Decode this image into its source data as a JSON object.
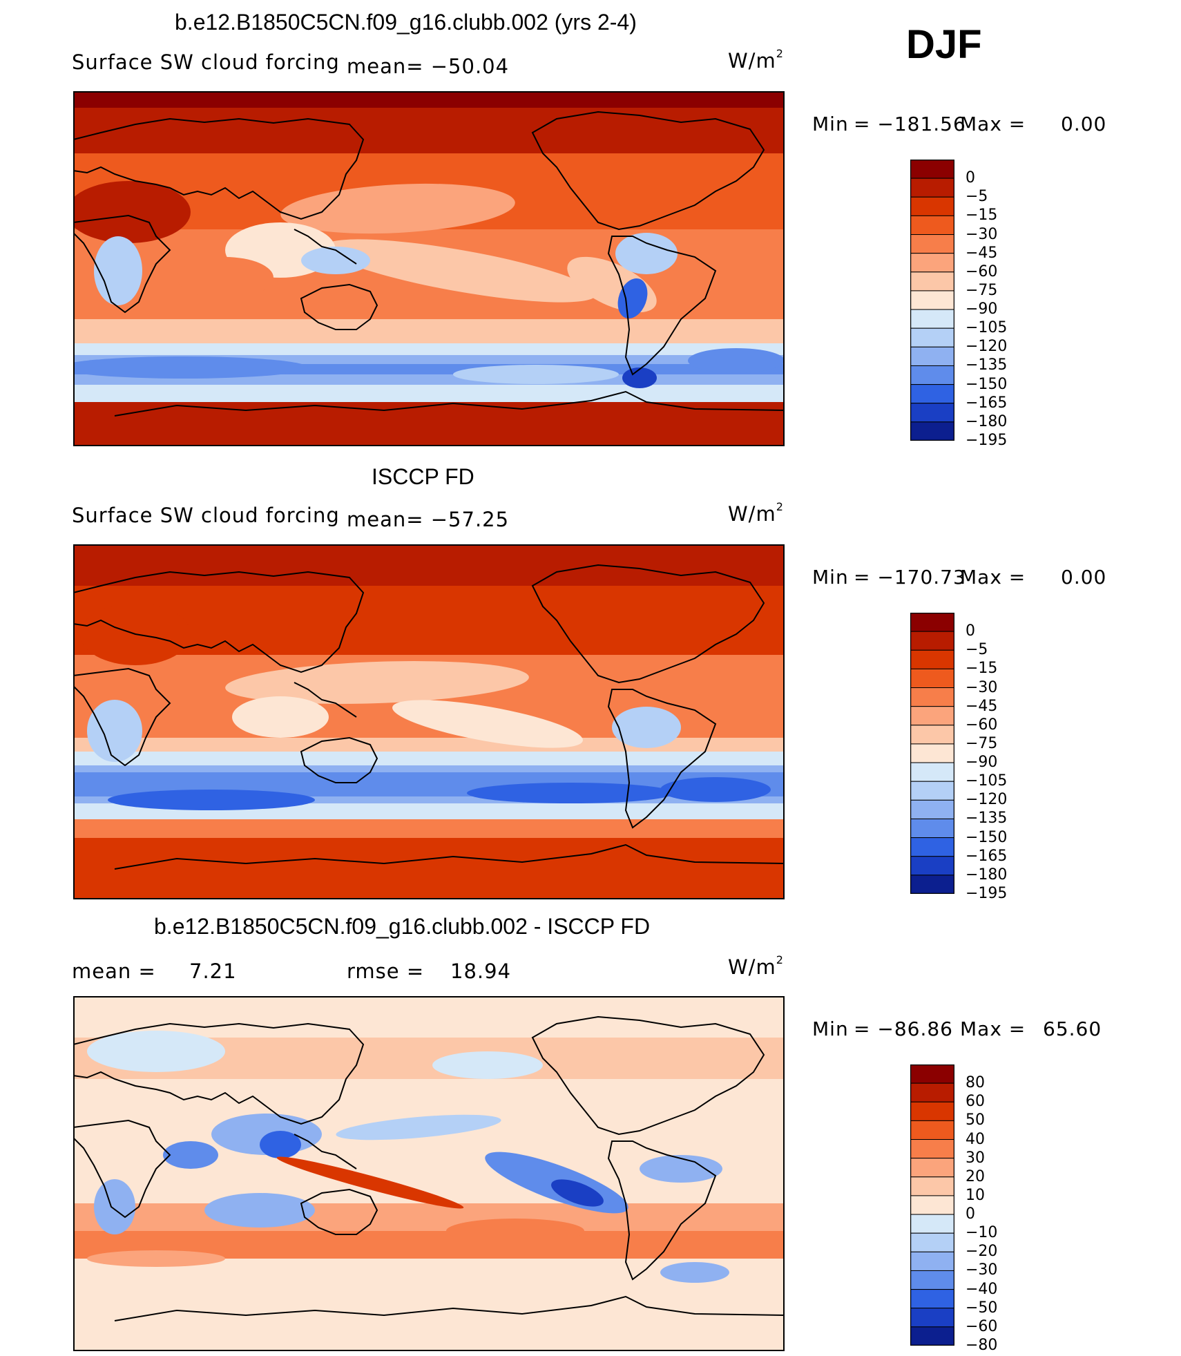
{
  "season": "DJF",
  "unit_base": "W/m",
  "unit_exp": "2",
  "panels": [
    {
      "title": "b.e12.B1850C5CN.f09_g16.clubb.002 (yrs 2-4)",
      "left_label": "Surface SW cloud forcing",
      "mean_text": "mean= −50.04",
      "minmax": "Min = −181.56 Max = 0.00",
      "min_label": "Min",
      "min_value": "= −181.56",
      "max_label": "Max =",
      "max_value": "0.00",
      "levels": [
        "0",
        "−5",
        "−15",
        "−30",
        "−45",
        "−60",
        "−75",
        "−90",
        "−105",
        "−120",
        "−135",
        "−150",
        "−165",
        "−180",
        "−195"
      ]
    },
    {
      "title": "ISCCP FD",
      "left_label": "Surface SW cloud forcing",
      "mean_text": "mean= −57.25",
      "min_label": "Min",
      "min_value": "= −170.73",
      "max_label": "Max =",
      "max_value": "0.00",
      "levels": [
        "0",
        "−5",
        "−15",
        "−30",
        "−45",
        "−60",
        "−75",
        "−90",
        "−105",
        "−120",
        "−135",
        "−150",
        "−165",
        "−180",
        "−195"
      ]
    },
    {
      "title": "b.e12.B1850C5CN.f09_g16.clubb.002 - ISCCP FD",
      "mean_label": "mean =",
      "mean_value": "7.21",
      "rmse_label": "rmse =",
      "rmse_value": "18.94",
      "min_label": "Min",
      "min_value": "= −86.86",
      "max_label": "Max =",
      "max_value": "65.60",
      "levels": [
        "80",
        "60",
        "50",
        "40",
        "30",
        "20",
        "10",
        "0",
        "−10",
        "−20",
        "−30",
        "−40",
        "−50",
        "−60",
        "−80"
      ]
    }
  ],
  "colors": {
    "scale": [
      "#8b0000",
      "#b81c00",
      "#d93600",
      "#ee5a1e",
      "#f77e4a",
      "#fba47c",
      "#fcc7a8",
      "#fde6d4",
      "#d5e8f8",
      "#b4d0f6",
      "#8fb1f1",
      "#5f8ceb",
      "#2f62e3",
      "#1a3fc4",
      "#0c1f8f"
    ],
    "land_outline": "#000000"
  },
  "chart_data": [
    {
      "type": "heatmap",
      "title": "b.e12.B1850C5CN.f09_g16.clubb.002 (yrs 2-4)",
      "variable": "Surface SW cloud forcing",
      "units": "W/m2",
      "mean": -50.04,
      "min": -181.56,
      "max": 0.0,
      "contour_levels": [
        0,
        -5,
        -15,
        -30,
        -45,
        -60,
        -75,
        -90,
        -105,
        -120,
        -135,
        -150,
        -165,
        -180,
        -195
      ]
    },
    {
      "type": "heatmap",
      "title": "ISCCP FD",
      "variable": "Surface SW cloud forcing",
      "units": "W/m2",
      "mean": -57.25,
      "min": -170.73,
      "max": 0.0,
      "contour_levels": [
        0,
        -5,
        -15,
        -30,
        -45,
        -60,
        -75,
        -90,
        -105,
        -120,
        -135,
        -150,
        -165,
        -180,
        -195
      ]
    },
    {
      "type": "heatmap",
      "title": "b.e12.B1850C5CN.f09_g16.clubb.002 - ISCCP FD",
      "units": "W/m2",
      "mean": 7.21,
      "rmse": 18.94,
      "min": -86.86,
      "max": 65.6,
      "contour_levels": [
        80,
        60,
        50,
        40,
        30,
        20,
        10,
        0,
        -10,
        -20,
        -30,
        -40,
        -50,
        -60,
        -80
      ]
    }
  ]
}
